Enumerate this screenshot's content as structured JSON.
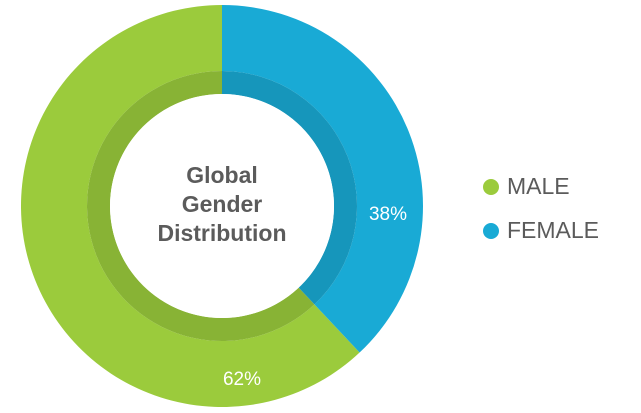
{
  "chart_data": {
    "type": "donut",
    "title": "Global Gender Distribution",
    "categories": [
      "MALE",
      "FEMALE"
    ],
    "values": [
      62,
      38
    ],
    "value_labels": [
      "62%",
      "38%"
    ],
    "colors": [
      "#9bcb3c",
      "#19aad5"
    ],
    "legend": "right"
  }
}
